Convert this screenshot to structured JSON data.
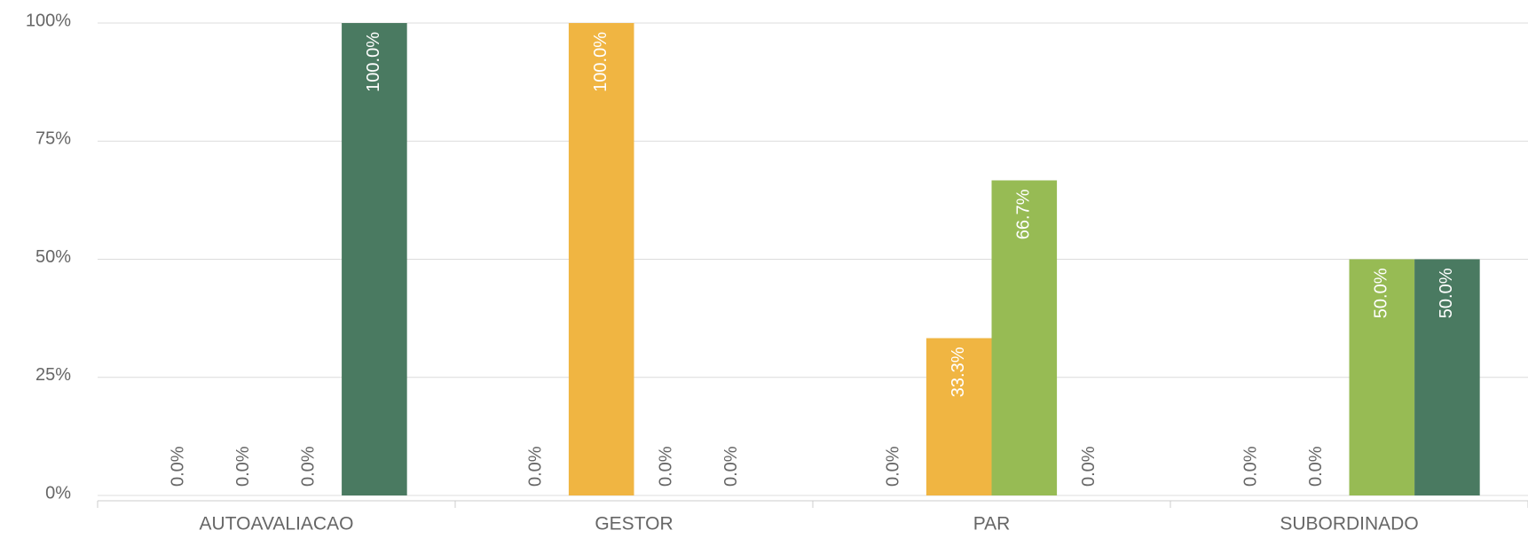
{
  "chart_data": {
    "type": "bar",
    "categories": [
      "AUTOAVALIACAO",
      "GESTOR",
      "PAR",
      "SUBORDINADO"
    ],
    "series": [
      {
        "values": [
          0,
          0,
          0,
          0
        ],
        "value_labels": [
          "0.0%",
          "0.0%",
          "0.0%",
          "0.0%"
        ]
      },
      {
        "color": "#f0b542",
        "values": [
          0,
          100,
          33.3,
          0
        ],
        "value_labels": [
          "0.0%",
          "100.0%",
          "33.3%",
          "0.0%"
        ]
      },
      {
        "color": "#97bb54",
        "values": [
          0,
          0,
          66.7,
          50
        ],
        "value_labels": [
          "0.0%",
          "0.0%",
          "66.7%",
          "50.0%"
        ]
      },
      {
        "color": "#4a7a61",
        "values": [
          100,
          0,
          0,
          50
        ],
        "value_labels": [
          "100.0%",
          "0.0%",
          "0.0%",
          "50.0%"
        ]
      }
    ],
    "ylim": [
      0,
      100
    ],
    "yticks": [
      {
        "value": 0,
        "label": "0%"
      },
      {
        "value": 25,
        "label": "25%"
      },
      {
        "value": 50,
        "label": "50%"
      },
      {
        "value": 75,
        "label": "75%"
      },
      {
        "value": 100,
        "label": "100%"
      }
    ],
    "grid": true
  }
}
